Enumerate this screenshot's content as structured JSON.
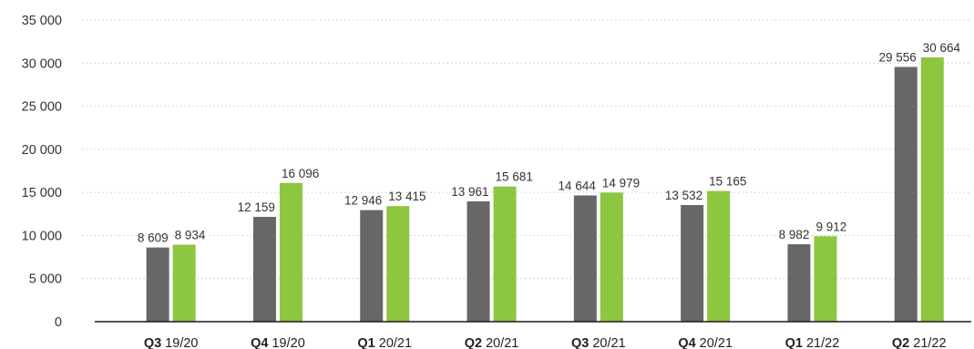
{
  "chart_data": {
    "type": "bar",
    "title": "",
    "xlabel": "",
    "ylabel": "",
    "categories": [
      {
        "quarter": "Q3",
        "period": "19/20"
      },
      {
        "quarter": "Q4",
        "period": "19/20"
      },
      {
        "quarter": "Q1",
        "period": "20/21"
      },
      {
        "quarter": "Q2",
        "period": "20/21"
      },
      {
        "quarter": "Q3",
        "period": "20/21"
      },
      {
        "quarter": "Q4",
        "period": "20/21"
      },
      {
        "quarter": "Q1",
        "period": "21/22"
      },
      {
        "quarter": "Q2",
        "period": "21/22"
      }
    ],
    "series": [
      {
        "color": "#666766",
        "values": [
          8609,
          12159,
          12946,
          13961,
          14644,
          13532,
          8982,
          29556
        ],
        "labels": [
          "8 609",
          "12 159",
          "12 946",
          "13 961",
          "14 644",
          "13 532",
          "8 982",
          "29 556"
        ]
      },
      {
        "color": "#8dc63f",
        "values": [
          8934,
          16096,
          13415,
          15681,
          14979,
          15165,
          9912,
          30664
        ],
        "labels": [
          "8 934",
          "16 096",
          "13 415",
          "15 681",
          "14 979",
          "15 165",
          "9 912",
          "30 664"
        ]
      }
    ],
    "ylim": [
      0,
      35000
    ],
    "yticks": [
      0,
      5000,
      10000,
      15000,
      20000,
      25000,
      30000,
      35000
    ],
    "ytick_labels": [
      "0",
      "5 000",
      "10 000",
      "15 000",
      "20 000",
      "25 000",
      "30 000",
      "35 000"
    ],
    "grid": true,
    "legend": "none"
  }
}
